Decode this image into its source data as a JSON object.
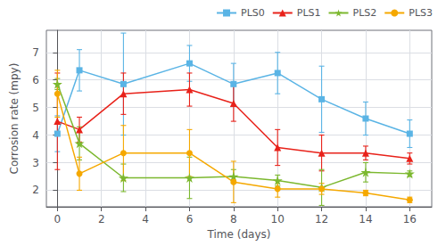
{
  "chart_data": {
    "type": "line",
    "xlabel": "Time (days)",
    "ylabel": "Corrosion rate (mpy)",
    "x": [
      0,
      1,
      3,
      6,
      8,
      10,
      12,
      14,
      16
    ],
    "series": [
      {
        "name": "PLS0",
        "color": "#5ab4e5",
        "marker": "square",
        "values": [
          4.05,
          6.35,
          5.85,
          6.6,
          5.85,
          6.25,
          5.3,
          4.6,
          4.05
        ],
        "yerr": [
          0.65,
          0.75,
          1.85,
          0.65,
          0.75,
          0.75,
          1.2,
          0.6,
          0.5
        ]
      },
      {
        "name": "PLS1",
        "color": "#e8221a",
        "marker": "triangle",
        "values": [
          4.5,
          4.2,
          5.5,
          5.65,
          5.15,
          3.55,
          3.35,
          3.35,
          3.15
        ],
        "yerr": [
          1.75,
          0.45,
          0.75,
          0.6,
          0.65,
          0.65,
          0.65,
          0.25,
          0.2
        ]
      },
      {
        "name": "PLS2",
        "color": "#7cb82f",
        "marker": "star",
        "values": [
          5.85,
          3.7,
          2.45,
          2.45,
          2.5,
          2.35,
          2.1,
          2.65,
          2.6
        ],
        "yerr": [
          0.2,
          0.6,
          0.5,
          0.75,
          0.25,
          0.2,
          0.65,
          0.35,
          0.1
        ]
      },
      {
        "name": "PLS3",
        "color": "#f5a800",
        "marker": "circle",
        "values": [
          5.5,
          2.6,
          3.35,
          3.35,
          2.3,
          2.05,
          2.05,
          1.9,
          1.65
        ],
        "yerr": [
          0.85,
          0.6,
          1.0,
          0.85,
          0.75,
          0.3,
          0.2,
          0.1,
          0.1
        ]
      }
    ],
    "xlim": [
      -0.5,
      17
    ],
    "xticks": [
      0,
      2,
      4,
      6,
      8,
      10,
      12,
      14,
      16
    ],
    "ylim": [
      1.4,
      7.8
    ],
    "yticks": [
      2,
      3,
      4,
      5,
      6,
      7
    ],
    "grid": true,
    "legend": "upper right"
  }
}
